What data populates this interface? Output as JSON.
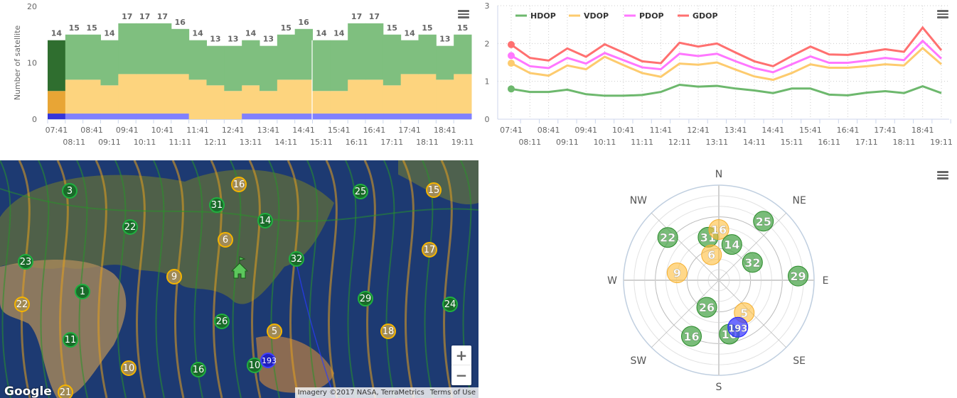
{
  "sat_chart": {
    "type": "bar",
    "stacked": true,
    "ylabel": "Number of satellite",
    "ylim": [
      0,
      20
    ],
    "yticks": [
      "0",
      "10",
      "20"
    ],
    "categories": [
      "07:41",
      "08:11",
      "08:41",
      "09:11",
      "09:41",
      "10:11",
      "10:41",
      "11:11",
      "11:41",
      "12:11",
      "12:41",
      "13:11",
      "13:41",
      "14:11",
      "14:41",
      "15:11",
      "15:41",
      "16:11",
      "16:41",
      "17:11",
      "17:41",
      "18:11",
      "18:41",
      "19:11"
    ],
    "totals": [
      "14",
      "15",
      "15",
      "14",
      "17",
      "17",
      "17",
      "16",
      "14",
      "13",
      "13",
      "14",
      "13",
      "15",
      "16",
      "14",
      "14",
      "17",
      "17",
      "15",
      "14",
      "15",
      "13",
      "15"
    ],
    "series": [
      {
        "name": "blue",
        "color": "#8080ff",
        "values": [
          1,
          1,
          1,
          1,
          1,
          1,
          1,
          1,
          0,
          0,
          0,
          1,
          1,
          1,
          1,
          1,
          1,
          1,
          1,
          1,
          1,
          1,
          1,
          1
        ]
      },
      {
        "name": "yellow",
        "color": "#fdd47e",
        "values": [
          4,
          6,
          6,
          5,
          7,
          7,
          7,
          7,
          7,
          6,
          5,
          5,
          4,
          6,
          6,
          4,
          4,
          6,
          6,
          5,
          7,
          7,
          6,
          7
        ]
      },
      {
        "name": "green",
        "color": "#7fbf7f",
        "values": [
          9,
          8,
          8,
          8,
          9,
          9,
          9,
          8,
          7,
          7,
          8,
          8,
          8,
          8,
          9,
          9,
          9,
          10,
          10,
          9,
          6,
          7,
          6,
          7
        ]
      }
    ],
    "highlight_colors": [
      "#3535d8",
      "#e8a535",
      "#2f6e2f"
    ]
  },
  "dop_chart": {
    "type": "line",
    "ylim": [
      0,
      3
    ],
    "yticks": [
      "0",
      "1",
      "2",
      "3"
    ],
    "categories": [
      "07:41",
      "08:11",
      "08:41",
      "09:11",
      "09:41",
      "10:11",
      "10:41",
      "11:11",
      "11:41",
      "12:11",
      "12:41",
      "13:11",
      "13:41",
      "14:11",
      "14:41",
      "15:11",
      "15:41",
      "16:11",
      "16:41",
      "17:11",
      "17:41",
      "18:11",
      "18:41",
      "19:11"
    ],
    "series": [
      {
        "name": "HDOP",
        "color": "#6db86d",
        "values": [
          0.8,
          0.72,
          0.72,
          0.78,
          0.66,
          0.62,
          0.62,
          0.64,
          0.72,
          0.91,
          0.86,
          0.88,
          0.81,
          0.76,
          0.69,
          0.81,
          0.81,
          0.65,
          0.63,
          0.7,
          0.74,
          0.69,
          0.87,
          0.69
        ]
      },
      {
        "name": "VDOP",
        "color": "#fdcb6e",
        "values": [
          1.48,
          1.22,
          1.15,
          1.42,
          1.32,
          1.65,
          1.43,
          1.22,
          1.12,
          1.47,
          1.44,
          1.5,
          1.31,
          1.13,
          1.04,
          1.22,
          1.45,
          1.36,
          1.36,
          1.4,
          1.45,
          1.42,
          1.88,
          1.45
        ]
      },
      {
        "name": "PDOP",
        "color": "#ff77ff",
        "values": [
          1.68,
          1.4,
          1.35,
          1.62,
          1.47,
          1.75,
          1.56,
          1.37,
          1.32,
          1.73,
          1.67,
          1.73,
          1.53,
          1.35,
          1.24,
          1.45,
          1.66,
          1.49,
          1.49,
          1.55,
          1.62,
          1.56,
          2.07,
          1.6
        ]
      },
      {
        "name": "GDOP",
        "color": "#ff7070",
        "values": [
          1.97,
          1.62,
          1.55,
          1.87,
          1.65,
          1.98,
          1.76,
          1.53,
          1.48,
          2.02,
          1.92,
          2.0,
          1.76,
          1.53,
          1.4,
          1.67,
          1.92,
          1.71,
          1.7,
          1.77,
          1.85,
          1.78,
          2.42,
          1.82
        ]
      }
    ]
  },
  "map": {
    "zoom_in": "+",
    "zoom_out": "−",
    "logo": "Google",
    "attribution": "Imagery ©2017 NASA, TerraMetrics",
    "terms": "Terms of Use",
    "markers": [
      {
        "label": "3",
        "type": "g"
      },
      {
        "label": "16",
        "type": "y"
      },
      {
        "label": "31",
        "type": "g"
      },
      {
        "label": "25",
        "type": "g"
      },
      {
        "label": "15",
        "type": "y"
      },
      {
        "label": "22",
        "type": "g"
      },
      {
        "label": "14",
        "type": "g"
      },
      {
        "label": "6",
        "type": "y"
      },
      {
        "label": "23",
        "type": "g"
      },
      {
        "label": "32",
        "type": "g"
      },
      {
        "label": "17",
        "type": "y"
      },
      {
        "label": "9",
        "type": "y"
      },
      {
        "label": "1",
        "type": "g"
      },
      {
        "label": "22",
        "type": "y"
      },
      {
        "label": "29",
        "type": "g"
      },
      {
        "label": "24",
        "type": "g"
      },
      {
        "label": "26",
        "type": "g"
      },
      {
        "label": "5",
        "type": "y"
      },
      {
        "label": "18",
        "type": "y"
      },
      {
        "label": "11",
        "type": "g"
      },
      {
        "label": "10",
        "type": "y"
      },
      {
        "label": "16",
        "type": "g"
      },
      {
        "label": "10",
        "type": "g"
      },
      {
        "label": "193",
        "type": "b"
      },
      {
        "label": "21",
        "type": "y"
      }
    ]
  },
  "skyplot": {
    "directions": [
      "N",
      "NE",
      "E",
      "SE",
      "S",
      "SW",
      "W",
      "NW"
    ],
    "colors": {
      "g": "rgba(76,165,76,0.75)",
      "y": "rgba(255,190,60,0.6)",
      "b": "rgba(60,60,255,0.75)"
    },
    "satellites": [
      {
        "label": "25",
        "type": "g",
        "az": 37,
        "el": 20
      },
      {
        "label": "22",
        "type": "g",
        "az": 310,
        "el": 27
      },
      {
        "label": "31",
        "type": "g",
        "az": 346,
        "el": 48
      },
      {
        "label": "16",
        "type": "y",
        "az": 0,
        "el": 42
      },
      {
        "label": "14",
        "type": "g",
        "az": 20,
        "el": 54
      },
      {
        "label": "6",
        "type": "y",
        "az": 344,
        "el": 65
      },
      {
        "label": "32",
        "type": "g",
        "az": 62,
        "el": 54
      },
      {
        "label": "29",
        "type": "g",
        "az": 87,
        "el": 15
      },
      {
        "label": "9",
        "type": "y",
        "az": 280,
        "el": 50
      },
      {
        "label": "26",
        "type": "g",
        "az": 204,
        "el": 62
      },
      {
        "label": "5",
        "type": "y",
        "az": 142,
        "el": 51
      },
      {
        "label": "16",
        "type": "g",
        "az": 206,
        "el": 31
      },
      {
        "label": "10",
        "type": "g",
        "az": 169,
        "el": 38
      },
      {
        "label": "193",
        "type": "b",
        "az": 158,
        "el": 42
      }
    ]
  }
}
